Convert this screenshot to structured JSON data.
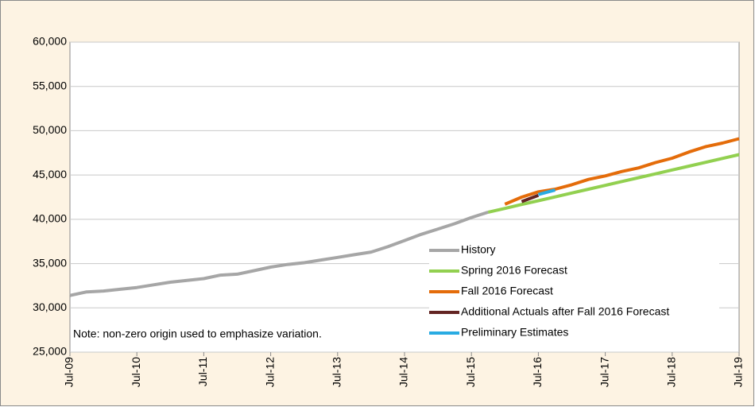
{
  "chart_data": {
    "type": "line",
    "categories": [
      "Jul-09",
      null,
      null,
      null,
      "Jul-10",
      null,
      null,
      null,
      "Jul-11",
      null,
      null,
      null,
      "Jul-12",
      null,
      null,
      null,
      "Jul-13",
      null,
      null,
      null,
      "Jul-14",
      null,
      null,
      null,
      "Jul-15",
      null,
      null,
      null,
      "Jul-16",
      null,
      null,
      null,
      "Jul-17",
      null,
      null,
      null,
      "Jul-18",
      null,
      null,
      null,
      "Jul-19"
    ],
    "series": [
      {
        "name": "History",
        "color": "#a6a6a6",
        "values": [
          31400,
          31800,
          31900,
          32100,
          32300,
          32600,
          32900,
          33100,
          33300,
          33700,
          33800,
          34200,
          34600,
          34900,
          35100,
          35400,
          35700,
          36000,
          36300,
          36900,
          37600,
          38300,
          38900,
          39500,
          40200,
          40800,
          null,
          null,
          null,
          null,
          null,
          null,
          null,
          null,
          null,
          null,
          null,
          null,
          null,
          null,
          null
        ]
      },
      {
        "name": "Spring 2016 Forecast",
        "color": "#92d050",
        "values": [
          null,
          null,
          null,
          null,
          null,
          null,
          null,
          null,
          null,
          null,
          null,
          null,
          null,
          null,
          null,
          null,
          null,
          null,
          null,
          null,
          null,
          null,
          null,
          null,
          null,
          40800,
          41230,
          41670,
          42100,
          42530,
          42970,
          43400,
          43830,
          44270,
          44700,
          45130,
          45570,
          46000,
          46430,
          46870,
          47300
        ]
      },
      {
        "name": "Fall 2016 Forecast",
        "color": "#e46c0a",
        "values": [
          null,
          null,
          null,
          null,
          null,
          null,
          null,
          null,
          null,
          null,
          null,
          null,
          null,
          null,
          null,
          null,
          null,
          null,
          null,
          null,
          null,
          null,
          null,
          null,
          null,
          null,
          41700,
          42500,
          43100,
          43400,
          43900,
          44500,
          44900,
          45400,
          45800,
          46400,
          46900,
          47600,
          48200,
          48600,
          49100
        ]
      },
      {
        "name": "Additional Actuals after Fall 2016 Forecast",
        "color": "#632523",
        "values": [
          null,
          null,
          null,
          null,
          null,
          null,
          null,
          null,
          null,
          null,
          null,
          null,
          null,
          null,
          null,
          null,
          null,
          null,
          null,
          null,
          null,
          null,
          null,
          null,
          null,
          null,
          null,
          42000,
          42700,
          null,
          null,
          null,
          null,
          null,
          null,
          null,
          null,
          null,
          null,
          null,
          null
        ]
      },
      {
        "name": "Preliminary Estimates",
        "color": "#29abe2",
        "values": [
          null,
          null,
          null,
          null,
          null,
          null,
          null,
          null,
          null,
          null,
          null,
          null,
          null,
          null,
          null,
          null,
          null,
          null,
          null,
          null,
          null,
          null,
          null,
          null,
          null,
          null,
          null,
          null,
          42800,
          43300,
          null,
          null,
          null,
          null,
          null,
          null,
          null,
          null,
          null,
          null,
          null
        ]
      }
    ],
    "ylim": [
      25000,
      60000
    ],
    "yticks": [
      {
        "value": 25000,
        "label": "25,000"
      },
      {
        "value": 30000,
        "label": "30,000"
      },
      {
        "value": 35000,
        "label": "35,000"
      },
      {
        "value": 40000,
        "label": "40,000"
      },
      {
        "value": 45000,
        "label": "45,000"
      },
      {
        "value": 50000,
        "label": "50,000"
      },
      {
        "value": 55000,
        "label": "55,000"
      },
      {
        "value": 60000,
        "label": "60,000"
      }
    ],
    "grid": true,
    "legend": "lower right",
    "annotation": "Note: non-zero origin used to emphasize variation."
  }
}
